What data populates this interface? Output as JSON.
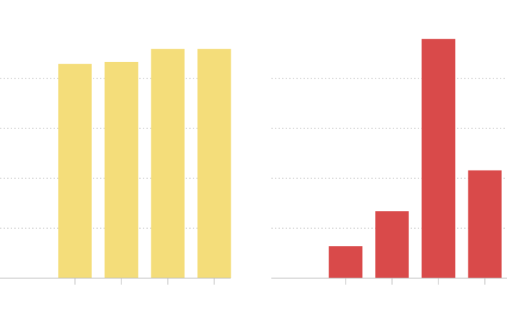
{
  "chart_data": [
    {
      "type": "bar",
      "categories": [
        null,
        null,
        null,
        null
      ],
      "values": [
        4.29,
        4.33,
        4.59,
        4.59
      ],
      "color": "#f4dd7a",
      "ylim": [
        0,
        5
      ],
      "yticks": [
        1,
        2,
        3,
        4
      ],
      "grid": true
    },
    {
      "type": "bar",
      "categories": [
        null,
        null,
        null,
        null
      ],
      "values": [
        0.64,
        1.34,
        4.79,
        2.16
      ],
      "color": "#d94a4a",
      "ylim": [
        0,
        5
      ],
      "yticks": [
        1,
        2,
        3,
        4
      ],
      "grid": true
    }
  ]
}
